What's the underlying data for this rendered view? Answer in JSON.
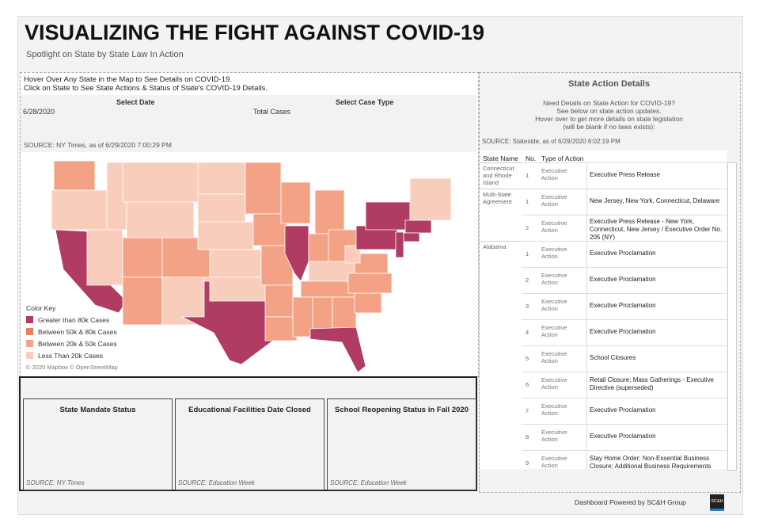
{
  "header": {
    "title": "VISUALIZING THE FIGHT AGAINST COVID-19",
    "subtitle": "Spotlight on State by State Law In Action"
  },
  "map_panel": {
    "instructions": [
      "Hover Over Any State in the Map to See Details on COVID-19.",
      "Click on State to See State Actions & Status of State's COVID-19 Details."
    ],
    "filters": [
      {
        "label": "Select Date",
        "value": "6/28/2020"
      },
      {
        "label": "Select Case Type",
        "value": "Total Cases"
      }
    ],
    "source": "SOURCE: NY Times, as of 6/29/2020 7:00:29 PM",
    "legend": {
      "title": "Color Key",
      "items": [
        {
          "label": "Greater than 80k Cases",
          "color": "#b03c63"
        },
        {
          "label": "Between 50k & 80k Cases",
          "color": "#ec7d63"
        },
        {
          "label": "Between 20k & 50k Cases",
          "color": "#f3a286"
        },
        {
          "label": "Less Than 20k Cases",
          "color": "#f9cdbb"
        }
      ]
    },
    "attribution": "© 2020 Mapbox © OpenStreetMap"
  },
  "cards": [
    {
      "title": "State Mandate Status",
      "source": "SOURCE: NY Times"
    },
    {
      "title": "Educational Facilities Date Closed",
      "source": "SOURCE: Education Week"
    },
    {
      "title": "School Reopening Status in Fall 2020",
      "source": "SOURCE: Education Week"
    }
  ],
  "details_panel": {
    "title": "State Action Details",
    "intro": [
      "Need Details on State Action for COVID-19?",
      "See below on state action updates.",
      "Hover over to get more details on state legislation",
      "(will be blank if no laws exists):"
    ],
    "source": "SOURCE: Stateside, as of 6/29/2020 6:02:19 PM",
    "columns": [
      "State Name",
      "No.",
      "Type of Action"
    ],
    "groups": [
      {
        "state": "Connecticut and Rhode Island",
        "actions": [
          {
            "no": 1,
            "type": "Executive Action",
            "detail": "Executive Press Release"
          }
        ]
      },
      {
        "state": "Multi-State Agreement",
        "actions": [
          {
            "no": 1,
            "type": "Executive Action",
            "detail": "New Jersey, New York, Connecticut, Delaware"
          },
          {
            "no": 2,
            "type": "Executive Action",
            "detail": "Executive Press Release - New York, Connecticut, New Jersey / Executive Order No. 205 (NY)"
          }
        ]
      },
      {
        "state": "Alabama",
        "actions": [
          {
            "no": 1,
            "type": "Executive Action",
            "detail": "Executive Proclamation"
          },
          {
            "no": 2,
            "type": "Executive Action",
            "detail": "Executive Proclamation"
          },
          {
            "no": 3,
            "type": "Executive Action",
            "detail": "Executive Proclamation"
          },
          {
            "no": 4,
            "type": "Executive Action",
            "detail": "Executive Proclamation"
          },
          {
            "no": 5,
            "type": "Executive Action",
            "detail": "School Closures"
          },
          {
            "no": 6,
            "type": "Executive Action",
            "detail": "Retail Closure; Mass Gatherings - Executive Directive (superseded)"
          },
          {
            "no": 7,
            "type": "Executive Action",
            "detail": "Executive Proclamation"
          },
          {
            "no": 8,
            "type": "Executive Action",
            "detail": "Executive Proclamation"
          },
          {
            "no": 9,
            "type": "Executive Action",
            "detail": "Stay Home Order; Non-Essential Business Closure; Additional Business Requirements"
          }
        ]
      }
    ]
  },
  "footer": {
    "credit": "Dashboard Powered by SC&H Group",
    "logo": "SC&H"
  }
}
